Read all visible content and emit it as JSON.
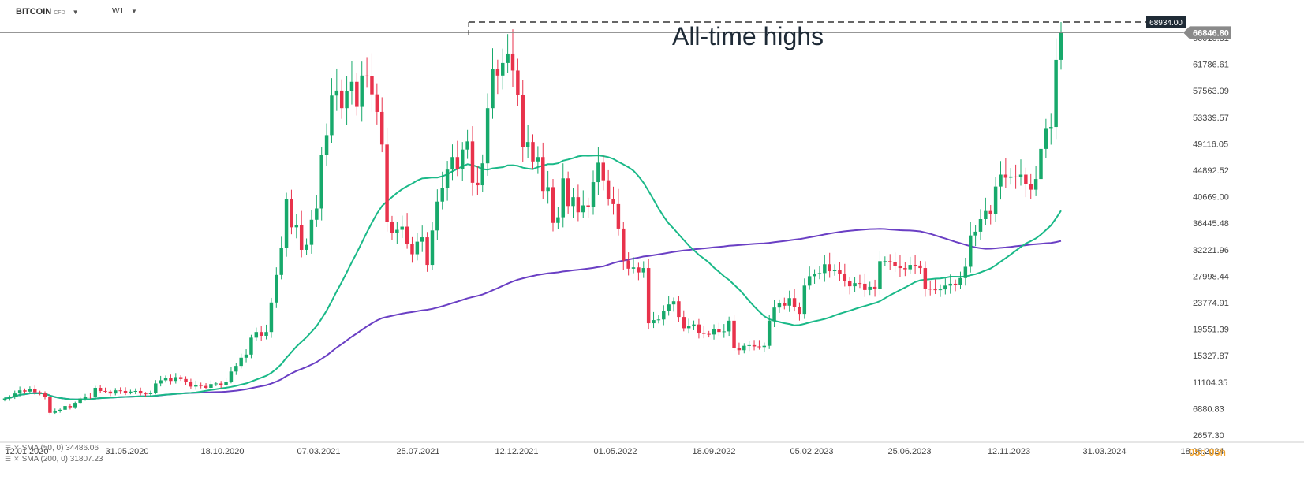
{
  "header": {
    "symbol": "BITCOIN",
    "symbol_type": "CFD",
    "interval": "W1"
  },
  "indicators": [
    {
      "label": "SMA (50, 0) 34486.06",
      "color": "#1ab988"
    },
    {
      "label": "SMA (200, 0) 31807.23",
      "color": "#6a3fc4"
    }
  ],
  "countdown": {
    "days": "05",
    "days_unit": "d",
    "hours": "05",
    "hours_unit": "h"
  },
  "chart_data": {
    "type": "candlestick",
    "annotation": "All-time highs",
    "price_labels": {
      "ath": "68934.00",
      "last": "66846.80"
    },
    "y_tick_labels": [
      "66010.31",
      "61786.61",
      "57563.09",
      "53339.57",
      "49116.05",
      "44892.52",
      "40669.00",
      "36445.48",
      "32221.96",
      "27998.44",
      "23774.91",
      "19551.39",
      "15327.87",
      "11104.35",
      "6880.83",
      "2657.30"
    ],
    "x_tick_labels": [
      "12.01.2020",
      "31.05.2020",
      "18.10.2020",
      "07.03.2021",
      "25.07.2021",
      "12.12.2021",
      "01.05.2022",
      "18.09.2022",
      "05.02.2023",
      "25.06.2023",
      "12.11.2023",
      "31.03.2024",
      "18.08.2024"
    ],
    "ylim": [
      2657.3,
      70234.0
    ],
    "candles_close": [
      8500,
      8700,
      9300,
      9800,
      9600,
      10000,
      9500,
      9300,
      8800,
      6200,
      6500,
      6700,
      7300,
      7100,
      7800,
      8500,
      8800,
      8700,
      10200,
      9700,
      9600,
      9300,
      9800,
      9700,
      9400,
      9600,
      9700,
      9300,
      9200,
      9400,
      10900,
      11400,
      11800,
      11300,
      11900,
      11600,
      11100,
      10400,
      10700,
      10500,
      10200,
      10800,
      10900,
      10700,
      11200,
      12800,
      13700,
      15000,
      15500,
      18200,
      19100,
      18500,
      19100,
      23800,
      28200,
      32500,
      40300,
      35800,
      36200,
      32200,
      33000,
      37000,
      38800,
      47400,
      50500,
      56800,
      57600,
      54800,
      57500,
      59000,
      55000,
      60000,
      59900,
      57000,
      54200,
      49000,
      36700,
      34900,
      35400,
      35900,
      33200,
      31500,
      33500,
      34200,
      29800,
      35300,
      39900,
      42100,
      45000,
      47000,
      45100,
      48200,
      49500,
      42900,
      42500,
      46000,
      54800,
      61000,
      60000,
      62000,
      63500,
      60800,
      56900,
      48600,
      49400,
      46300,
      47000,
      41600,
      42200,
      36500,
      37400,
      43600,
      39200,
      40600,
      38200,
      39300,
      39000,
      43000,
      46100,
      43300,
      40300,
      39500,
      35600,
      30500,
      29200,
      29400,
      28600,
      29300,
      20500,
      21000,
      21100,
      22400,
      23500,
      24000,
      21500,
      19700,
      20000,
      20300,
      19000,
      18800,
      18700,
      19600,
      19100,
      19200,
      20900,
      16500,
      16200,
      16900,
      17000,
      16800,
      16700,
      16900,
      20900,
      23000,
      23700,
      23300,
      24500,
      23100,
      22000,
      26500,
      28000,
      28400,
      28500,
      29900,
      28800,
      29000,
      28400,
      27200,
      26400,
      26900,
      26800,
      25800,
      26300,
      26000,
      30400,
      30400,
      30300,
      29600,
      29300,
      29100,
      29800,
      29700,
      29300,
      26000,
      25900,
      25800,
      25900,
      26500,
      26800,
      26600,
      27700,
      29500,
      34500,
      35100,
      37100,
      38400,
      37900,
      42300,
      44200,
      43700,
      43900,
      43800,
      44200,
      42700,
      41800,
      43500,
      48300,
      51500,
      51800,
      62500,
      66846
    ]
  }
}
